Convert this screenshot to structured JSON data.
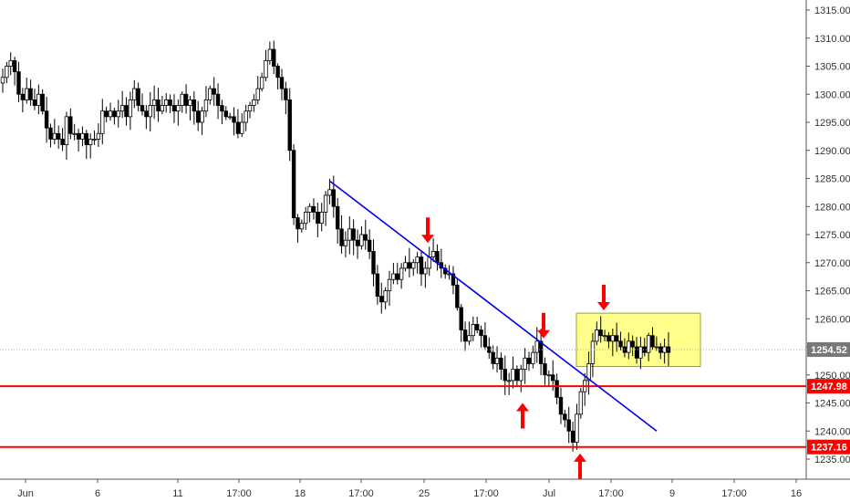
{
  "chart_data": {
    "type": "candlestick",
    "y_axis": {
      "position": "right",
      "range": [
        1232,
        1317
      ],
      "ticks": [
        1235,
        1240,
        1245,
        1250,
        1255,
        1260,
        1265,
        1270,
        1275,
        1280,
        1285,
        1290,
        1295,
        1300,
        1305,
        1310,
        1315
      ],
      "tick_labels": [
        "1235.00",
        "1240.00",
        "1245.00",
        "1250.00",
        "1255.00",
        "1260.00",
        "1265.00",
        "1270.00",
        "1275.00",
        "1280.00",
        "1285.00",
        "1290.00",
        "1295.00",
        "1300.00",
        "1305.00",
        "1310.00",
        "1315.00"
      ]
    },
    "x_axis": {
      "tick_labels": [
        "Jun",
        "6",
        "11",
        "17:00",
        "18",
        "17:00",
        "25",
        "17:00",
        "Jul",
        "17:00",
        "9",
        "17:00",
        "16"
      ]
    },
    "current_price": {
      "value": 1254.52,
      "label": "1254.52",
      "style": "dotted",
      "color": "#c8c8c8"
    },
    "horizontal_lines": [
      {
        "value": 1247.98,
        "label": "1247.98",
        "color": "#ff0000"
      },
      {
        "value": 1237.16,
        "label": "1237.16",
        "color": "#ff0000"
      }
    ],
    "trendline": {
      "from": [
        362,
        1284.5
      ],
      "to": [
        720,
        1240.0
      ],
      "color": "#0000ee"
    },
    "rectangle": {
      "from": [
        632,
        1261.0
      ],
      "to": [
        768,
        1251.5
      ],
      "fill": "#ffff66",
      "stroke": "#a0a030"
    },
    "arrows": [
      {
        "direction": "down",
        "x": 469,
        "price": 1273.5,
        "color": "#ff0000"
      },
      {
        "direction": "down",
        "x": 596,
        "price": 1256.5,
        "color": "#ff0000"
      },
      {
        "direction": "down",
        "x": 662,
        "price": 1261.5,
        "color": "#ff0000"
      },
      {
        "direction": "up",
        "x": 573,
        "price": 1245.0,
        "color": "#ff0000"
      },
      {
        "direction": "up",
        "x": 636,
        "price": 1236.0,
        "color": "#ff0000"
      }
    ],
    "candles_note": "approximate OHLC path estimated from the screenshot",
    "close_path": [
      1303,
      1305,
      1306,
      1304,
      1300,
      1299,
      1301,
      1299,
      1298,
      1300,
      1297,
      1294,
      1292,
      1293,
      1292,
      1291,
      1296,
      1293,
      1293,
      1292,
      1293,
      1291,
      1292,
      1292,
      1293,
      1297,
      1296,
      1297,
      1296,
      1297,
      1298,
      1296,
      1299,
      1301,
      1298,
      1297,
      1296,
      1298,
      1299,
      1297,
      1298,
      1299,
      1298,
      1297,
      1298,
      1300,
      1298,
      1299,
      1297,
      1295,
      1297,
      1299,
      1301,
      1300,
      1298,
      1297,
      1296,
      1296,
      1295,
      1293,
      1295,
      1297,
      1298,
      1299,
      1301,
      1303,
      1306,
      1308,
      1305,
      1303,
      1301,
      1299,
      1290,
      1278,
      1276,
      1277,
      1279,
      1280,
      1279,
      1277,
      1279,
      1282,
      1283,
      1280,
      1276,
      1273,
      1274,
      1276,
      1274,
      1273,
      1275,
      1274,
      1272,
      1268,
      1264,
      1263,
      1265,
      1267,
      1268,
      1267,
      1269,
      1270,
      1269,
      1270,
      1271,
      1268,
      1269,
      1271,
      1272,
      1270,
      1269,
      1268,
      1268,
      1266,
      1262,
      1258,
      1256,
      1257,
      1259,
      1258,
      1257,
      1255,
      1254,
      1252,
      1253,
      1251,
      1249,
      1249,
      1251,
      1249,
      1251,
      1253,
      1252,
      1254,
      1256,
      1252,
      1250,
      1250,
      1249,
      1246,
      1243,
      1242,
      1240,
      1238,
      1243,
      1247,
      1249,
      1252,
      1256,
      1258,
      1257,
      1257,
      1256,
      1257,
      1256,
      1255,
      1254,
      1256,
      1255,
      1253,
      1255,
      1254,
      1257,
      1255,
      1255,
      1254,
      1255,
      1254
    ]
  }
}
